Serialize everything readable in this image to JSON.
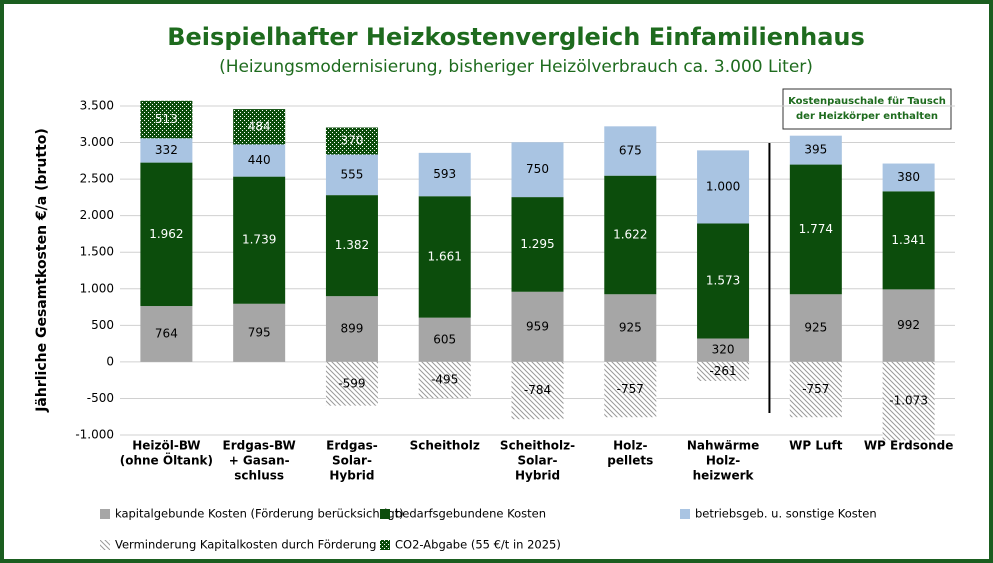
{
  "chart_data": {
    "type": "bar",
    "stacked": true,
    "title": "Beispielhafter Heizkostenvergleich Einfamilienhaus",
    "subtitle": "(Heizungsmodernisierung, bisheriger Heizölverbrauch ca. 3.000 Liter)",
    "y_label": "Jährliche Gesamtkosten €/a (brutto)",
    "annotation": [
      "Kostenpauschale für Tausch",
      "der Heizkörper enthalten"
    ],
    "categories": [
      [
        "Heizöl-BW",
        "(ohne Öltank)"
      ],
      [
        "Erdgas-BW",
        "+ Gasan-",
        "schluss"
      ],
      [
        "Erdgas-",
        "Solar-",
        "Hybrid"
      ],
      [
        "Scheitholz"
      ],
      [
        "Scheitholz-",
        "Solar-",
        "Hybrid"
      ],
      [
        "Holz-",
        "pellets"
      ],
      [
        "Nahwärme",
        "Holz-",
        "heizwerk"
      ],
      [
        "WP Luft"
      ],
      [
        "WP Erdsonde"
      ]
    ],
    "series": [
      {
        "name": "kapitalgebunde Kosten (Förderung berücksichtigt)",
        "color": "#a6a6a6",
        "label_color": "#000000",
        "values": [
          764,
          795,
          899,
          605,
          959,
          925,
          320,
          925,
          992
        ],
        "value_labels": [
          "764",
          "795",
          "899",
          "605",
          "959",
          "925",
          "320",
          "925",
          "992"
        ]
      },
      {
        "name": "bedarfsgebundene Kosten",
        "color": "#0c4d0c",
        "label_color": "#ffffff",
        "values": [
          1962,
          1739,
          1382,
          1661,
          1295,
          1622,
          1573,
          1774,
          1341
        ],
        "value_labels": [
          "1.962",
          "1.739",
          "1.382",
          "1.661",
          "1.295",
          "1.622",
          "1.573",
          "1.774",
          "1.341"
        ]
      },
      {
        "name": "betriebsgeb. u. sonstige Kosten",
        "color": "#a9c4e2",
        "label_color": "#000000",
        "values": [
          332,
          440,
          555,
          593,
          750,
          675,
          1000,
          395,
          380
        ],
        "value_labels": [
          "332",
          "440",
          "555",
          "593",
          "750",
          "675",
          "1.000",
          "395",
          "380"
        ]
      },
      {
        "name": "Verminderung Kapitalkosten durch Förderung",
        "color": "#9a9a9a",
        "pattern": "hatch",
        "label_color": "#000000",
        "values": [
          null,
          null,
          -599,
          -495,
          -784,
          -757,
          -261,
          -757,
          -1073
        ],
        "value_labels": [
          null,
          null,
          "-599",
          "-495",
          "-784",
          "-757",
          "-261",
          "-757",
          "-1.073"
        ]
      },
      {
        "name": "CO2-Abgabe (55 €/t in 2025)",
        "color": "#0c4d0c",
        "pattern": "check",
        "label_color": "#ffffff",
        "values": [
          513,
          484,
          370,
          null,
          null,
          null,
          null,
          null,
          null
        ],
        "value_labels": [
          "513",
          "484",
          "370",
          null,
          null,
          null,
          null,
          null,
          null
        ]
      }
    ],
    "ylim": [
      -1000,
      3500
    ],
    "yticks": [
      {
        "value": -1000,
        "label": "-1.000"
      },
      -500,
      0,
      500,
      {
        "value": 1000,
        "label": "1.000"
      },
      {
        "value": 1500,
        "label": "1.500"
      },
      {
        "value": 2000,
        "label": "2.000"
      },
      {
        "value": 2500,
        "label": "2.500"
      },
      {
        "value": 3000,
        "label": "3.000"
      },
      {
        "value": 3500,
        "label": "3.500"
      }
    ],
    "grid": true
  }
}
